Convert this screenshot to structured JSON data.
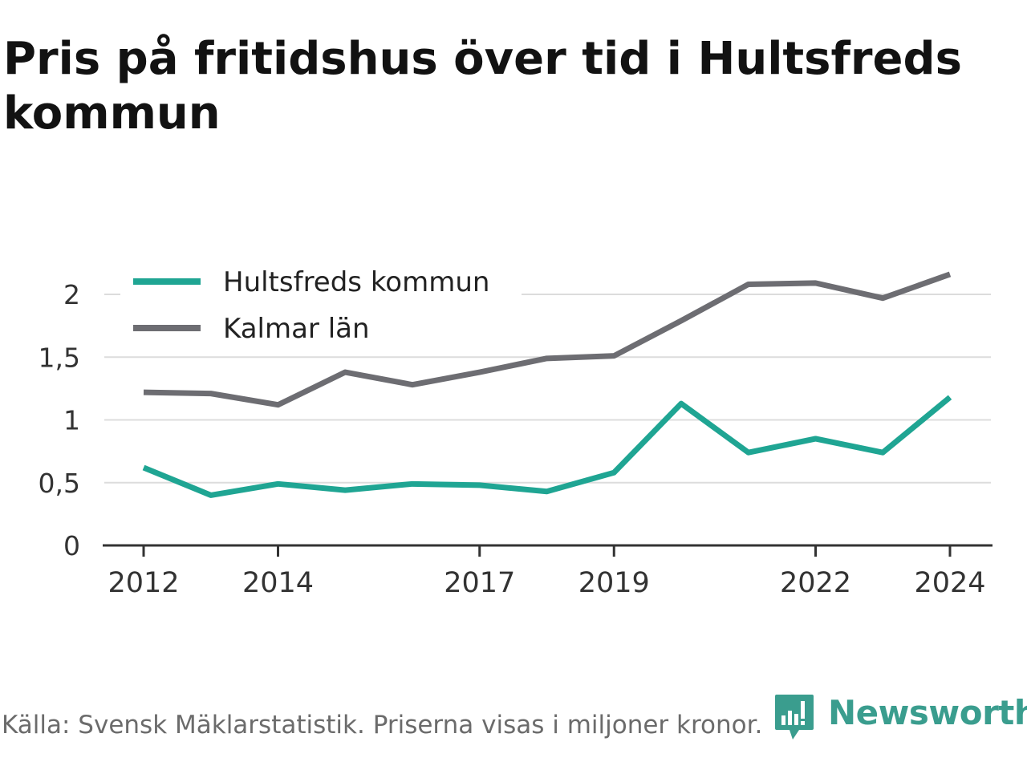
{
  "header": {
    "title": "Pris på fritidshus över tid i Hultsfreds kommun"
  },
  "footer": {
    "source": "Källa: Svensk Mäklarstatistik. Priserna visas i miljoner kronor."
  },
  "brand": {
    "name": "Newsworthy",
    "icon": "newsworthy-logo-icon",
    "color": "#3a9d8e"
  },
  "chart_data": {
    "type": "line",
    "title": "Pris på fritidshus över tid i Hultsfreds kommun",
    "xlabel": "",
    "ylabel": "",
    "x": [
      2012,
      2013,
      2014,
      2015,
      2016,
      2017,
      2018,
      2019,
      2020,
      2021,
      2022,
      2023,
      2024
    ],
    "xticks": [
      2012,
      2014,
      2017,
      2019,
      2022,
      2024
    ],
    "yticks": [
      0,
      0.5,
      1,
      1.5,
      2
    ],
    "ytick_labels": [
      "0",
      "0,5",
      "1",
      "1,5",
      "2"
    ],
    "ylim": [
      0,
      2.2
    ],
    "grid": true,
    "legend_position": "top-left",
    "series": [
      {
        "name": "Hultsfreds kommun",
        "color": "#1fa593",
        "values": [
          0.62,
          0.4,
          0.49,
          0.44,
          0.49,
          0.48,
          0.43,
          0.58,
          1.13,
          0.74,
          0.85,
          0.74,
          1.18
        ]
      },
      {
        "name": "Kalmar län",
        "color": "#6d6d72",
        "values": [
          1.22,
          1.21,
          1.12,
          1.38,
          1.28,
          1.38,
          1.49,
          1.51,
          1.79,
          2.08,
          2.09,
          1.97,
          2.16
        ]
      }
    ]
  }
}
